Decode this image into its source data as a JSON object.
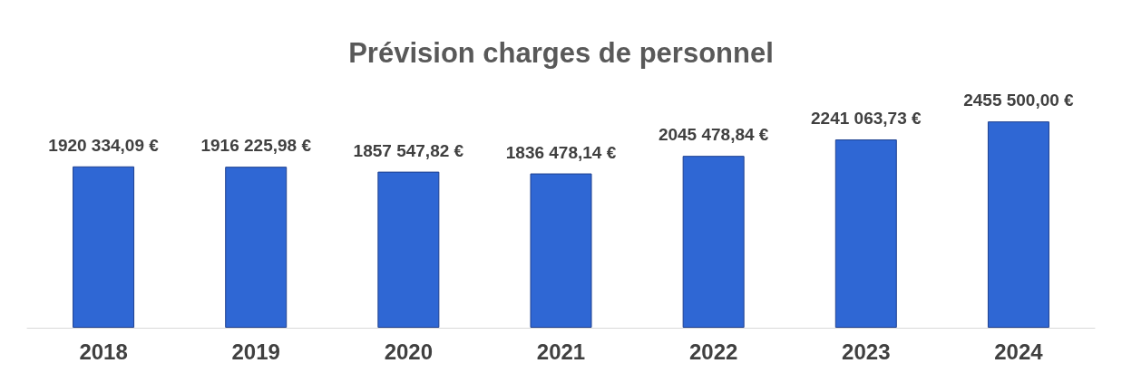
{
  "chart_data": {
    "type": "bar",
    "title": "Prévision charges de personnel",
    "categories": [
      "2018",
      "2019",
      "2020",
      "2021",
      "2022",
      "2023",
      "2024"
    ],
    "values": [
      1920334.09,
      1916225.98,
      1857547.82,
      1836478.14,
      2045478.84,
      2241063.73,
      2455500.0
    ],
    "value_labels": [
      "1920 334,09 €",
      "1916 225,98 €",
      "1857 547,82 €",
      "1836 478,14 €",
      "2045 478,84 €",
      "2241 063,73 €",
      "2455 500,00 €"
    ],
    "color": "#2f67d4"
  }
}
